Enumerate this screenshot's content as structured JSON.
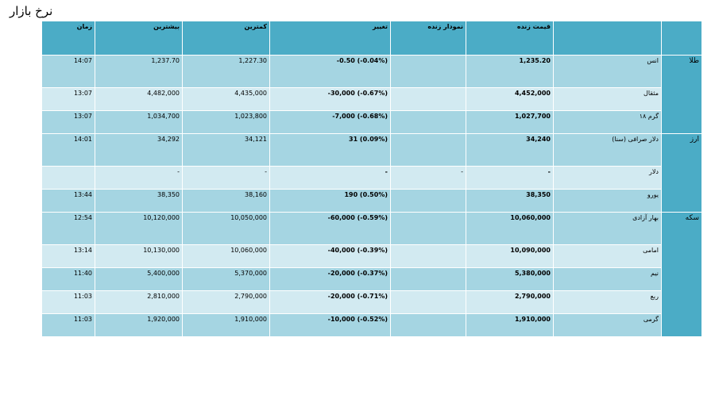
{
  "page_title": "نرخ بازار",
  "columns": {
    "time": "زمان",
    "max": "بیشترین",
    "min": "کمترین",
    "change": "تغییر",
    "chart": "نمودار زنده",
    "price": "قیمت زنده",
    "name": "",
    "group": ""
  },
  "groups": [
    {
      "label": "طلا",
      "rows": [
        {
          "time": "14:07",
          "max": "1,237.70",
          "min": "1,227.30",
          "change": "-0.50 (-0.04%)",
          "chart": "",
          "price": "1,235.20",
          "name": "انس"
        },
        {
          "time": "13:07",
          "max": "4,482,000",
          "min": "4,435,000",
          "change": "-30,000 (-0.67%)",
          "chart": "",
          "price": "4,452,000",
          "name": "مثقال"
        },
        {
          "time": "13:07",
          "max": "1,034,700",
          "min": "1,023,800",
          "change": "-7,000 (-0.68%)",
          "chart": "",
          "price": "1,027,700",
          "name": "گرم ۱۸"
        }
      ]
    },
    {
      "label": "ارز",
      "rows": [
        {
          "time": "14:01",
          "max": "34,292",
          "min": "34,121",
          "change": "31 (0.09%)",
          "chart": "",
          "price": "34,240",
          "name": "دلار صرافی (سنا)"
        },
        {
          "time": "",
          "max": "-",
          "min": "-",
          "change": "-",
          "chart": "-",
          "price": "-",
          "name": "دلار"
        },
        {
          "time": "13:44",
          "max": "38,350",
          "min": "38,160",
          "change": "190 (0.50%)",
          "chart": "",
          "price": "38,350",
          "name": "یورو"
        }
      ]
    },
    {
      "label": "سکه",
      "rows": [
        {
          "time": "12:54",
          "max": "10,120,000",
          "min": "10,050,000",
          "change": "-60,000 (-0.59%)",
          "chart": "",
          "price": "10,060,000",
          "name": "بهار آزادی"
        },
        {
          "time": "13:14",
          "max": "10,130,000",
          "min": "10,060,000",
          "change": "-40,000 (-0.39%)",
          "chart": "",
          "price": "10,090,000",
          "name": "امامی"
        },
        {
          "time": "11:40",
          "max": "5,400,000",
          "min": "5,370,000",
          "change": "-20,000 (-0.37%)",
          "chart": "",
          "price": "5,380,000",
          "name": "نیم"
        },
        {
          "time": "11:03",
          "max": "2,810,000",
          "min": "2,790,000",
          "change": "-20,000 (-0.71%)",
          "chart": "",
          "price": "2,790,000",
          "name": "ربع"
        },
        {
          "time": "11:03",
          "max": "1,920,000",
          "min": "1,910,000",
          "change": "-10,000 (-0.52%)",
          "chart": "",
          "price": "1,910,000",
          "name": "گرمی"
        }
      ]
    }
  ]
}
